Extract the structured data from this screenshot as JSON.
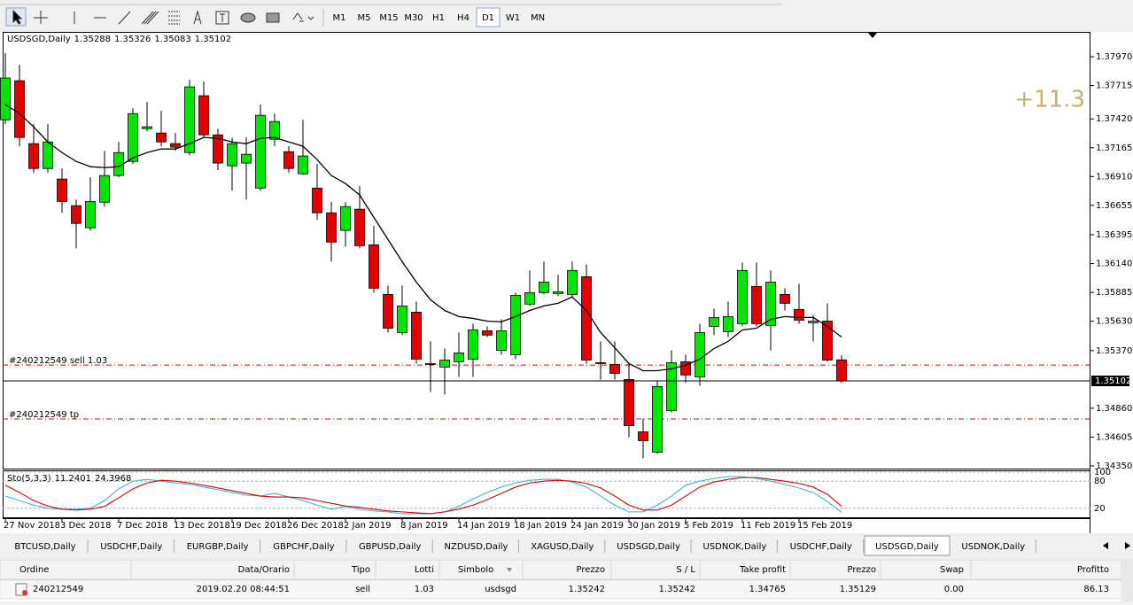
{
  "toolbar": {
    "timeframes": [
      "M1",
      "M5",
      "M15",
      "M30",
      "H1",
      "H4",
      "D1",
      "W1",
      "MN"
    ],
    "active": 6
  },
  "chart_data": [
    {
      "type": "candlestick",
      "title": "USDSGD,Daily",
      "categories": [
        "27 Nov 2018",
        null,
        null,
        null,
        "3 Dec 2018",
        null,
        null,
        null,
        "7 Dec 2018",
        null,
        null,
        null,
        "13 Dec 2018",
        null,
        null,
        null,
        "19 Dec 2018",
        null,
        null,
        null,
        "26 Dec 2018",
        null,
        null,
        null,
        "2 Jan 2019",
        null,
        null,
        null,
        "8 Jan 2019",
        null,
        null,
        null,
        "14 Jan 2019",
        null,
        null,
        null,
        "18 Jan 2019",
        null,
        null,
        null,
        "24 Jan 2019",
        null,
        null,
        null,
        "30 Jan 2019",
        null,
        null,
        null,
        "5 Feb 2019",
        null,
        null,
        null,
        "11 Feb 2019",
        null,
        null,
        null,
        "15 Feb 2019",
        null,
        null,
        null
      ],
      "open": [
        1.37412,
        1.37758,
        1.37201,
        1.36981,
        1.36888,
        1.36652,
        1.36457,
        1.36683,
        1.36919,
        1.37044,
        1.37334,
        1.37295,
        1.37201,
        1.37122,
        1.37625,
        1.37279,
        1.37005,
        1.37029,
        1.36808,
        1.3724,
        1.3713,
        1.36934,
        1.36808,
        1.36589,
        1.36433,
        1.36621,
        1.36306,
        1.35867,
        1.3553,
        1.3571,
        1.35248,
        1.35224,
        1.35271,
        1.35294,
        1.35545,
        1.35372,
        1.35334,
        1.35781,
        1.35883,
        1.35875,
        1.35867,
        1.36024,
        1.35263,
        1.35248,
        1.35114,
        1.34651,
        1.34471,
        1.34839,
        1.35271,
        1.35137,
        1.35585,
        1.35538,
        1.35608,
        1.35938,
        1.35593,
        1.35867,
        1.35734,
        1.35616,
        1.35631,
        1.35288
      ],
      "high": [
        1.38001,
        1.37899,
        1.37374,
        1.37374,
        1.36981,
        1.36707,
        1.36903,
        1.37138,
        1.37216,
        1.37515,
        1.3757,
        1.37492,
        1.37295,
        1.37766,
        1.37751,
        1.37334,
        1.37256,
        1.37256,
        1.37547,
        1.37467,
        1.37178,
        1.37412,
        1.37021,
        1.36683,
        1.36683,
        1.36825,
        1.36472,
        1.35945,
        1.35945,
        1.35803,
        1.35452,
        1.35388,
        1.3553,
        1.35608,
        1.35584,
        1.35647,
        1.35883,
        1.36079,
        1.36157,
        1.3604,
        1.36157,
        1.36133,
        1.35452,
        1.35452,
        1.35255,
        1.34768,
        1.35098,
        1.35372,
        1.35334,
        1.35608,
        1.35741,
        1.35803,
        1.36149,
        1.36149,
        1.36079,
        1.35921,
        1.35961,
        1.35686,
        1.35788,
        1.35326
      ],
      "low": [
        1.37374,
        1.37178,
        1.36942,
        1.36942,
        1.36589,
        1.36275,
        1.36433,
        1.36644,
        1.36903,
        1.37021,
        1.37311,
        1.37178,
        1.37138,
        1.37099,
        1.37256,
        1.36966,
        1.36785,
        1.36707,
        1.36785,
        1.37178,
        1.36942,
        1.36926,
        1.36526,
        1.36157,
        1.3629,
        1.36275,
        1.35883,
        1.3553,
        1.35507,
        1.35255,
        1.35004,
        1.34981,
        1.35137,
        1.35137,
        1.3549,
        1.35334,
        1.35294,
        1.35765,
        1.35867,
        1.35852,
        1.35844,
        1.35255,
        1.35114,
        1.35114,
        1.34604,
        1.34416,
        1.34455,
        1.34823,
        1.35083,
        1.35059,
        1.35507,
        1.3549,
        1.35584,
        1.35584,
        1.35372,
        1.35725,
        1.35608,
        1.35452,
        1.35271,
        1.35083
      ],
      "close": [
        1.37782,
        1.37256,
        1.36981,
        1.37216,
        1.3669,
        1.36495,
        1.3669,
        1.36919,
        1.37122,
        1.37467,
        1.3735,
        1.37216,
        1.3717,
        1.37703,
        1.37279,
        1.37029,
        1.37201,
        1.37107,
        1.37452,
        1.37397,
        1.36981,
        1.37092,
        1.36589,
        1.3633,
        1.36644,
        1.36298,
        1.35922,
        1.35568,
        1.35765,
        1.35294,
        1.35255,
        1.35286,
        1.35349,
        1.35553,
        1.35507,
        1.35545,
        1.35859,
        1.35883,
        1.35976,
        1.3589,
        1.36079,
        1.35286,
        1.35255,
        1.35169,
        1.34706,
        1.34573,
        1.35052,
        1.35263,
        1.35154,
        1.3553,
        1.35662,
        1.35671,
        1.36079,
        1.35608,
        1.35976,
        1.35788,
        1.35639,
        1.35631,
        1.35286,
        1.35102
      ],
      "colors": {
        "up": "#00e600",
        "down": "#e60000"
      },
      "line": {
        "color": "#000000",
        "values": [
          1.37547,
          1.37467,
          1.3735,
          1.37216,
          1.37122,
          1.37044,
          1.36997,
          1.36989,
          1.36997,
          1.37075,
          1.37122,
          1.37154,
          1.37154,
          1.37201,
          1.37256,
          1.37248,
          1.37216,
          1.37201,
          1.37248,
          1.37256,
          1.37216,
          1.37178,
          1.3706,
          1.36919,
          1.36848,
          1.36747,
          1.36549,
          1.36353,
          1.36157,
          1.35976,
          1.3582,
          1.35725,
          1.35671,
          1.35655,
          1.35631,
          1.35624,
          1.35671,
          1.35725,
          1.35765,
          1.35789,
          1.35844,
          1.35725,
          1.3553,
          1.35395,
          1.35255,
          1.35192,
          1.35192,
          1.35209,
          1.3524,
          1.35294,
          1.35388,
          1.35452,
          1.35553,
          1.35568,
          1.35647,
          1.35671,
          1.35663,
          1.35663,
          1.35585,
          1.3549
        ]
      },
      "ylim": [
        1.34326,
        1.38182
      ],
      "yticks": [
        {
          "value": 1.3797,
          "label": "1.37970"
        },
        1.37715,
        {
          "value": 1.3742,
          "label": "1.37420"
        },
        1.37165,
        {
          "value": 1.3691,
          "label": "1.36910"
        },
        1.36655,
        1.36395,
        {
          "value": 1.3614,
          "label": "1.36140"
        },
        1.35885,
        {
          "value": 1.3563,
          "label": "1.35630"
        },
        {
          "value": 1.3537,
          "label": "1.35370"
        },
        {
          "value": 1.3486,
          "label": "1.34860"
        },
        1.34605,
        {
          "value": 1.3435,
          "label": "1.34350"
        }
      ],
      "annotation": "+11.3",
      "orders": [
        {
          "label": "#240212549 sell 1.03",
          "level": "table.rows.0.5",
          "color": "#e60000"
        },
        {
          "label": "#240212549 tp",
          "level": "table.rows.0.7",
          "color": "#e60000"
        }
      ]
    },
    {
      "type": "line",
      "title": "Sto(5,3,3)",
      "ylim": [
        0,
        100
      ],
      "yticks": [
        100,
        80,
        20
      ],
      "series": [
        {
          "color": "#3cb8d8",
          "values": [
            47,
            37,
            27,
            20,
            18,
            18,
            20,
            37,
            63,
            80,
            84,
            80,
            76,
            73,
            67,
            61,
            55,
            49,
            47,
            53,
            45,
            37,
            27,
            18,
            24,
            18,
            14,
            12,
            8,
            8,
            8,
            12,
            24,
            41,
            55,
            67,
            76,
            82,
            84,
            84,
            78,
            67,
            47,
            27,
            12,
            12,
            27,
            47,
            71,
            80,
            86,
            90,
            90,
            86,
            80,
            73,
            65,
            55,
            35,
            11.2401
          ]
        },
        {
          "color": "#e00000",
          "values": [
            71,
            55,
            37,
            25,
            18,
            16,
            18,
            24,
            43,
            63,
            76,
            82,
            80,
            76,
            71,
            65,
            59,
            53,
            47,
            45,
            45,
            43,
            37,
            31,
            25,
            22,
            18,
            14,
            12,
            10,
            8,
            12,
            18,
            27,
            39,
            53,
            67,
            76,
            80,
            82,
            80,
            75,
            65,
            47,
            27,
            16,
            16,
            27,
            47,
            67,
            78,
            84,
            88,
            88,
            84,
            80,
            75,
            67,
            51,
            24.3968
          ]
        }
      ]
    }
  ],
  "tabs": {
    "items": [
      "BTCUSD,Daily",
      "USDCHF,Daily",
      "EURGBP,Daily",
      "GBPCHF,Daily",
      "GBPUSD,Daily",
      "NZDUSD,Daily",
      "XAGUSD,Daily",
      "USDSGD,Daily",
      "USDNOK,Daily",
      "USDCHF,Daily",
      "USDSGD,Daily",
      "USDNOK,Daily"
    ],
    "active": 10
  },
  "table": {
    "columns": [
      "Ordine",
      "Data/Orario",
      "Tipo",
      "Lotti",
      "Simbolo",
      "Prezzo",
      "S / L",
      "Take profit",
      "Prezzo",
      "Swap",
      "Profitto"
    ],
    "rows": [
      [
        "240212549",
        "2019.02.20 08:44:51",
        "sell",
        1.03,
        "usdsgd",
        1.35242,
        1.35242,
        1.34765,
        1.35129,
        "0.00",
        86.13
      ]
    ]
  }
}
